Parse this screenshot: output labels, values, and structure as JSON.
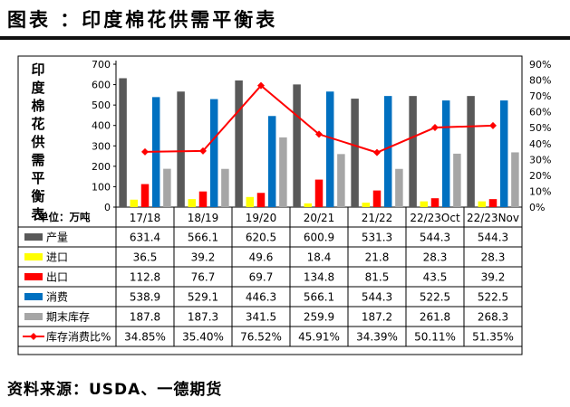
{
  "header": {
    "title": "图表 ：印度棉花供需平衡表"
  },
  "footer": {
    "source": "资料来源：USDA、一德期货"
  },
  "chart_data": {
    "type": "bar",
    "title": "印度棉花供需平衡表",
    "ylabel": "印度棉花供需平衡表",
    "unit_label": "单位：万吨",
    "ylim": [
      0,
      700
    ],
    "y2lim": [
      0,
      90
    ],
    "y_ticks": [
      "0",
      "100",
      "200",
      "300",
      "400",
      "500",
      "600",
      "700"
    ],
    "y2_ticks": [
      "0%",
      "10%",
      "20%",
      "30%",
      "40%",
      "50%",
      "60%",
      "70%",
      "80%",
      "90%"
    ],
    "categories": [
      "17/18",
      "18/19",
      "19/20",
      "20/21",
      "21/22",
      "22/23Oct",
      "22/23Nov"
    ],
    "series": [
      {
        "name": "产量",
        "color": "#595959",
        "kind": "bar",
        "values": [
          631.4,
          566.1,
          620.5,
          600.9,
          531.3,
          544.3,
          544.3
        ],
        "labels": [
          "631.4",
          "566.1",
          "620.5",
          "600.9",
          "531.3",
          "544.3",
          "544.3"
        ]
      },
      {
        "name": "进口",
        "color": "#ffff00",
        "kind": "bar",
        "values": [
          36.5,
          39.2,
          49.6,
          18.4,
          21.8,
          28.3,
          28.3
        ],
        "labels": [
          "36.5",
          "39.2",
          "49.6",
          "18.4",
          "21.8",
          "28.3",
          "28.3"
        ]
      },
      {
        "name": "出口",
        "color": "#ff0000",
        "kind": "bar",
        "values": [
          112.8,
          76.7,
          69.7,
          134.8,
          81.5,
          43.5,
          39.2
        ],
        "labels": [
          "112.8",
          "76.7",
          "69.7",
          "134.8",
          "81.5",
          "43.5",
          "39.2"
        ]
      },
      {
        "name": "消费",
        "color": "#0070c0",
        "kind": "bar",
        "values": [
          538.9,
          529.1,
          446.3,
          566.1,
          544.3,
          522.5,
          522.5
        ],
        "labels": [
          "538.9",
          "529.1",
          "446.3",
          "566.1",
          "544.3",
          "522.5",
          "522.5"
        ]
      },
      {
        "name": "期末库存",
        "color": "#a6a6a6",
        "kind": "bar",
        "values": [
          187.8,
          187.3,
          341.5,
          259.9,
          187.2,
          261.8,
          268.3
        ],
        "labels": [
          "187.8",
          "187.3",
          "341.5",
          "259.9",
          "187.2",
          "261.8",
          "268.3"
        ]
      },
      {
        "name": "库存消费比%",
        "color": "#ff0000",
        "kind": "line",
        "axis": "right",
        "values": [
          34.85,
          35.4,
          76.52,
          45.91,
          34.39,
          50.11,
          51.35
        ],
        "labels": [
          "34.85%",
          "35.40%",
          "76.52%",
          "45.91%",
          "34.39%",
          "50.11%",
          "51.35%"
        ]
      }
    ]
  }
}
